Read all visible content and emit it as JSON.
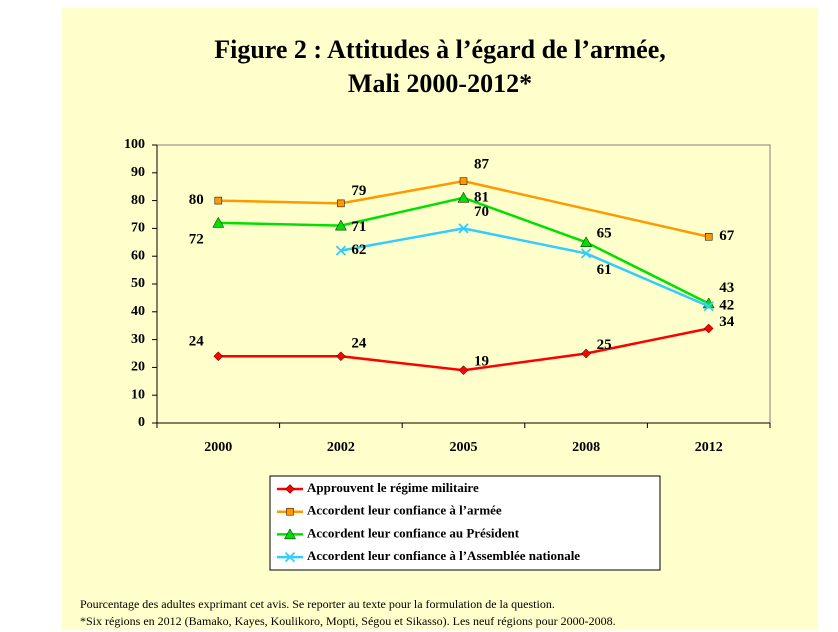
{
  "chart_data": {
    "type": "line",
    "title": [
      "Figure 2 : Attitudes à l’égard de l’armée,",
      "Mali 2000-2012*"
    ],
    "categories": [
      "2000",
      "2002",
      "2005",
      "2008",
      "2012"
    ],
    "series": [
      {
        "name": "Approuvent le régime militaire",
        "color": "#ff0000",
        "marker": "diamond",
        "values": [
          24,
          24,
          19,
          25,
          34
        ]
      },
      {
        "name": "Accordent leur confiance à l’armée",
        "color": "#ff9900",
        "marker": "square",
        "values": [
          80,
          79,
          87,
          null,
          67
        ]
      },
      {
        "name": "Accordent leur confiance au Président",
        "color": "#00e000",
        "marker": "triangle",
        "values": [
          72,
          71,
          81,
          65,
          43
        ]
      },
      {
        "name": "Accordent leur confiance à l’Assemblée nationale",
        "color": "#33ccff",
        "marker": "x",
        "values": [
          null,
          62,
          70,
          61,
          42
        ]
      }
    ],
    "ylim": [
      0,
      100
    ],
    "yticks": [
      0,
      10,
      20,
      30,
      40,
      50,
      60,
      70,
      80,
      90,
      100
    ],
    "grid": false,
    "span_gaps": true,
    "legend": "bottom",
    "notes": [
      "Pourcentage des adultes exprimant cet avis. Se reporter au texte pour la formulation de la question.",
      "*Six régions en 2012 (Bamako, Kayes, Koulikoro, Mopti, Ségou et Sikasso). Les neuf régions pour 2000-2008."
    ]
  }
}
